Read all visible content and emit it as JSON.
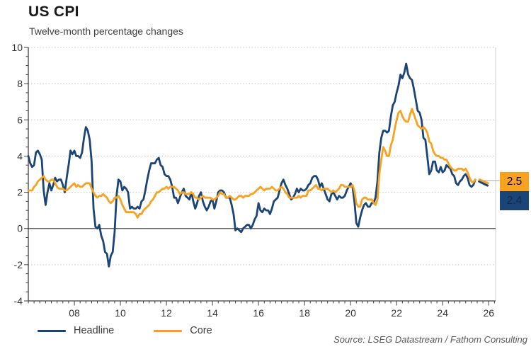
{
  "title": "US CPI",
  "subtitle": "Twelve-month percentage changes",
  "source": "Source: LSEG Datastream / Fathom Consulting",
  "colors": {
    "headline": "#1b4477",
    "core": "#f8a21f",
    "grid": "#c4c4c4",
    "axis": "#3f3f3f",
    "zero_line": "#4d4d4d",
    "leader_line": "#a8a8a8"
  },
  "end_labels": {
    "core": {
      "value": "2.5"
    },
    "headline": {
      "value": "2.4"
    }
  },
  "chart_data": {
    "type": "line",
    "title": "US CPI",
    "subtitle": "Twelve-month percentage changes",
    "xlabel": "",
    "ylabel": "",
    "xlim": [
      2006.0,
      2026.3
    ],
    "ylim": [
      -4,
      10
    ],
    "y_ticks": [
      -4,
      -2,
      0,
      2,
      4,
      6,
      8,
      10
    ],
    "y_minor_step": 0.5,
    "x_minor_step": 0.25,
    "xlabel_ticks": {
      "years": [
        2008,
        2010,
        2012,
        2014,
        2016,
        2018,
        2020,
        2022,
        2024,
        2026
      ],
      "labels": [
        "08",
        "10",
        "12",
        "14",
        "16",
        "18",
        "20",
        "22",
        "24",
        "26"
      ]
    },
    "grid": "dotted horizontal at major y ticks",
    "legend_position": "bottom-left",
    "x_start": 2006.0,
    "x_step_years": 0.0833333,
    "series": [
      {
        "name": "Headline",
        "color": "#1b4477",
        "values": [
          4.0,
          3.6,
          3.4,
          3.5,
          4.2,
          4.3,
          4.1,
          3.8,
          2.1,
          1.3,
          2.0,
          2.5,
          2.1,
          2.4,
          2.8,
          2.6,
          2.7,
          2.7,
          2.4,
          2.0,
          2.8,
          3.5,
          4.3,
          4.1,
          4.3,
          4.0,
          4.0,
          3.9,
          4.2,
          5.0,
          5.6,
          5.4,
          4.9,
          3.7,
          1.1,
          0.1,
          0.0,
          0.2,
          -0.4,
          -0.7,
          -1.3,
          -1.4,
          -2.1,
          -1.5,
          -1.3,
          -0.2,
          1.8,
          2.7,
          2.6,
          2.1,
          2.3,
          2.2,
          2.0,
          1.1,
          1.2,
          1.1,
          1.1,
          1.2,
          1.1,
          1.5,
          1.6,
          2.1,
          2.7,
          3.2,
          3.6,
          3.6,
          3.6,
          3.8,
          3.9,
          3.5,
          3.4,
          3.0,
          2.9,
          2.9,
          2.7,
          2.3,
          1.7,
          1.7,
          1.4,
          1.7,
          2.0,
          2.2,
          1.8,
          1.7,
          1.6,
          2.0,
          1.5,
          1.1,
          1.4,
          1.8,
          2.0,
          1.5,
          1.2,
          1.0,
          1.2,
          1.5,
          1.6,
          1.1,
          1.5,
          2.0,
          2.1,
          2.1,
          2.0,
          1.7,
          1.7,
          1.7,
          1.3,
          0.8,
          -0.1,
          0.0,
          -0.1,
          -0.2,
          0.0,
          0.1,
          0.2,
          0.2,
          0.0,
          0.2,
          0.5,
          0.7,
          1.4,
          1.0,
          0.9,
          1.1,
          1.0,
          1.0,
          0.8,
          1.1,
          1.5,
          1.6,
          1.7,
          2.1,
          2.5,
          2.7,
          2.4,
          2.2,
          1.9,
          1.6,
          1.7,
          1.9,
          2.2,
          2.0,
          2.2,
          2.1,
          2.1,
          2.2,
          2.4,
          2.5,
          2.8,
          2.9,
          2.9,
          2.7,
          2.3,
          2.5,
          2.2,
          1.9,
          1.6,
          1.5,
          1.9,
          2.0,
          1.8,
          1.6,
          1.8,
          1.7,
          1.7,
          1.8,
          2.1,
          2.3,
          2.5,
          2.3,
          1.5,
          0.3,
          0.1,
          0.6,
          1.0,
          1.3,
          1.4,
          1.2,
          1.2,
          1.4,
          1.4,
          1.7,
          2.6,
          4.2,
          5.0,
          5.4,
          5.4,
          5.3,
          5.4,
          6.2,
          6.8,
          7.0,
          7.5,
          7.9,
          8.5,
          8.3,
          8.6,
          9.1,
          8.5,
          8.3,
          8.2,
          7.7,
          7.1,
          6.5,
          6.4,
          6.0,
          5.0,
          4.9,
          4.0,
          3.0,
          3.2,
          3.7,
          3.7,
          3.2,
          3.1,
          3.4,
          3.1,
          3.2,
          3.5,
          3.4,
          3.3,
          3.0,
          2.9,
          2.5,
          2.4,
          2.6,
          2.7,
          2.9,
          3.0,
          2.8,
          2.4,
          2.3,
          2.4,
          2.7
        ]
      },
      {
        "name": "Core",
        "color": "#f8a21f",
        "values": [
          2.1,
          2.1,
          2.1,
          2.3,
          2.4,
          2.6,
          2.7,
          2.8,
          2.9,
          2.7,
          2.6,
          2.6,
          2.7,
          2.7,
          2.5,
          2.3,
          2.2,
          2.2,
          2.2,
          2.1,
          2.1,
          2.2,
          2.3,
          2.4,
          2.5,
          2.3,
          2.4,
          2.3,
          2.3,
          2.4,
          2.5,
          2.5,
          2.5,
          2.2,
          2.0,
          1.8,
          1.7,
          1.8,
          1.8,
          1.9,
          1.8,
          1.7,
          1.5,
          1.4,
          1.5,
          1.7,
          1.7,
          1.8,
          1.6,
          1.3,
          1.1,
          0.9,
          0.9,
          0.9,
          0.9,
          0.9,
          0.8,
          0.6,
          0.8,
          0.8,
          1.0,
          1.1,
          1.2,
          1.3,
          1.5,
          1.6,
          1.8,
          2.0,
          2.0,
          2.1,
          2.2,
          2.2,
          2.3,
          2.2,
          2.3,
          2.3,
          2.3,
          2.2,
          2.1,
          1.9,
          2.0,
          2.0,
          1.9,
          1.9,
          1.9,
          2.0,
          1.9,
          1.7,
          1.7,
          1.6,
          1.7,
          1.8,
          1.7,
          1.7,
          1.7,
          1.7,
          1.6,
          1.6,
          1.7,
          1.8,
          2.0,
          1.9,
          1.9,
          1.7,
          1.7,
          1.8,
          1.7,
          1.6,
          1.6,
          1.7,
          1.8,
          1.8,
          1.7,
          1.8,
          1.8,
          1.8,
          1.9,
          1.9,
          2.0,
          2.1,
          2.2,
          2.3,
          2.2,
          2.1,
          2.2,
          2.2,
          2.2,
          2.3,
          2.2,
          2.1,
          2.1,
          2.2,
          2.3,
          2.2,
          2.0,
          1.9,
          1.7,
          1.7,
          1.7,
          1.7,
          1.7,
          1.8,
          1.7,
          1.8,
          1.8,
          1.8,
          2.1,
          2.1,
          2.2,
          2.3,
          2.4,
          2.2,
          2.2,
          2.1,
          2.2,
          2.2,
          2.2,
          2.1,
          2.0,
          2.1,
          2.0,
          2.1,
          2.2,
          2.4,
          2.4,
          2.3,
          2.3,
          2.3,
          2.3,
          2.4,
          2.1,
          1.4,
          1.2,
          1.2,
          1.6,
          1.7,
          1.7,
          1.6,
          1.6,
          1.6,
          1.4,
          1.3,
          1.6,
          3.0,
          3.8,
          4.5,
          4.3,
          4.0,
          4.0,
          4.6,
          4.9,
          5.5,
          6.0,
          6.4,
          6.5,
          6.2,
          6.0,
          5.9,
          5.9,
          6.3,
          6.6,
          6.3,
          6.0,
          5.7,
          5.6,
          5.5,
          5.6,
          5.5,
          5.3,
          4.8,
          4.7,
          4.3,
          4.1,
          4.0,
          4.0,
          3.9,
          3.9,
          3.8,
          3.8,
          3.6,
          3.4,
          3.3,
          3.2,
          3.2,
          3.3,
          3.3,
          3.3,
          3.2,
          3.3,
          3.1,
          2.8,
          2.6,
          2.55,
          2.7
        ]
      }
    ],
    "forecast_segments": [
      {
        "series": "Headline",
        "color": "#1b4477",
        "x": [
          2025.58,
          2025.95
        ],
        "values": [
          2.6,
          2.37
        ]
      },
      {
        "series": "Core",
        "color": "#f8a21f",
        "x": [
          2025.6,
          2025.97
        ],
        "values": [
          2.7,
          2.5
        ]
      }
    ],
    "latest_values": {
      "Core": 2.5,
      "Headline": 2.4
    }
  }
}
